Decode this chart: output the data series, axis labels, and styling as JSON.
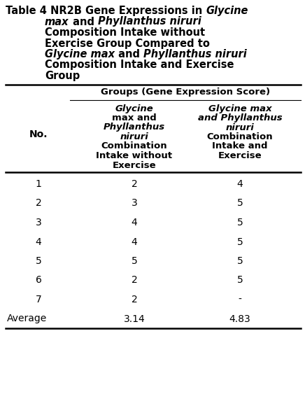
{
  "bg_color": "#ffffff",
  "text_color": "#000000",
  "title_line1_plain": "Table 4 NR2B Gene Expressions in ",
  "title_line1_italic": "Glycine",
  "title_line2_italic": "max",
  "title_line2_plain1": " and ",
  "title_line2_italic2": "Phyllanthus niruri",
  "title_line3": "Composition Intake without",
  "title_line4": "Exercise Group Compared to",
  "title_line5_italic": "Glycine max",
  "title_line5_plain": " and ",
  "title_line5_italic2": "Phyllanthus niruri",
  "title_line6": "Composition Intake and Exercise",
  "title_line7": "Group",
  "group_header": "Groups (Gene Expression Score)",
  "col1_lines": [
    "Glycine",
    "max",
    " and",
    "Phyllanthus",
    "niruri",
    "Combination",
    "Intake without",
    "Exercise"
  ],
  "col1_italic": [
    true,
    true,
    false,
    true,
    true,
    false,
    false,
    false
  ],
  "col2_lines": [
    "Glycine max",
    "and",
    "Phyllanthus",
    "niruri",
    "Combination",
    "Intake and",
    "Exercise"
  ],
  "col2_italic": [
    true,
    false,
    true,
    true,
    false,
    false,
    false
  ],
  "rows": [
    [
      "1",
      "2",
      "4"
    ],
    [
      "2",
      "3",
      "5"
    ],
    [
      "3",
      "4",
      "5"
    ],
    [
      "4",
      "4",
      "5"
    ],
    [
      "5",
      "5",
      "5"
    ],
    [
      "6",
      "2",
      "5"
    ],
    [
      "7",
      "2",
      "-"
    ]
  ],
  "avg_label": "Average",
  "avg_col1": "3.14",
  "avg_col2": "4.83",
  "title_fontsize": 10.5,
  "header_fontsize": 9.5,
  "body_fontsize": 10.0,
  "line_thick": 1.8,
  "line_thin": 0.8
}
